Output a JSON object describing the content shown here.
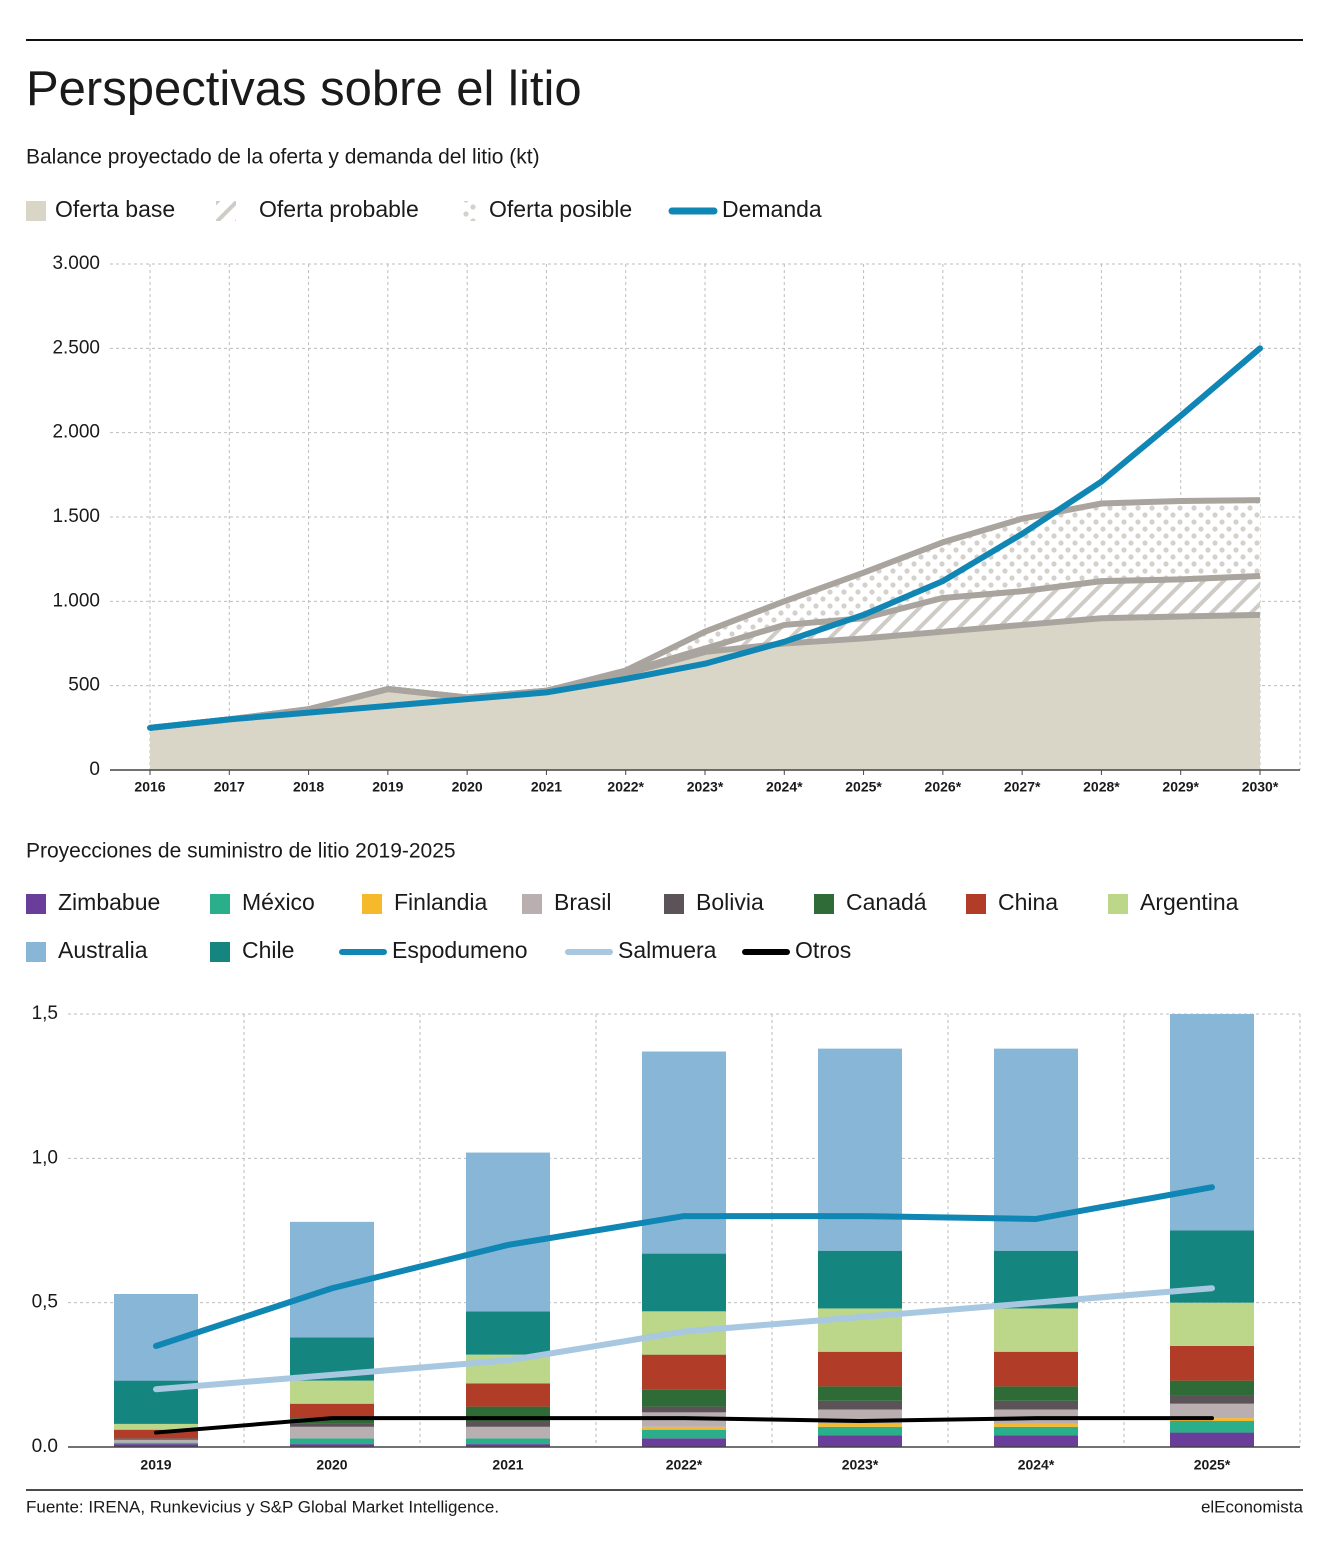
{
  "title": "Perspectivas sobre el litio",
  "source": "Fuente: IRENA, Runkevicius y S&P Global Market Intelligence.",
  "brand": "elEconomista",
  "chart_data": [
    {
      "type": "area",
      "title": "Balance proyectado de la oferta y demanda del litio (kt)",
      "categories": [
        "2016",
        "2017",
        "2018",
        "2019",
        "2020",
        "2021",
        "2022*",
        "2023*",
        "2024*",
        "2025*",
        "2026*",
        "2027*",
        "2028*",
        "2029*",
        "2030*"
      ],
      "edge_color": "#aaa49f",
      "series": [
        {
          "name": "Oferta base",
          "style": "fill",
          "color": "#d9d6c8",
          "values": [
            250,
            300,
            360,
            480,
            430,
            470,
            570,
            700,
            750,
            780,
            820,
            860,
            900,
            910,
            920
          ]
        },
        {
          "name": "Oferta probable",
          "style": "hatch",
          "color": "#c4c1bc",
          "values": [
            0,
            0,
            0,
            0,
            0,
            0,
            10,
            20,
            110,
            120,
            200,
            200,
            220,
            220,
            230
          ]
        },
        {
          "name": "Oferta posible",
          "style": "dots",
          "color": "#cfccc8",
          "values": [
            0,
            0,
            0,
            0,
            0,
            0,
            10,
            100,
            140,
            270,
            330,
            430,
            460,
            465,
            450
          ]
        },
        {
          "name": "Demanda",
          "style": "line",
          "color": "#0f86b4",
          "values": [
            250,
            300,
            340,
            380,
            420,
            460,
            540,
            630,
            760,
            920,
            1120,
            1400,
            1710,
            2100,
            2500
          ]
        }
      ],
      "ylim": [
        0,
        3000
      ],
      "yticks": [
        0,
        500,
        {
          "value": 1000,
          "label": "1.000"
        },
        {
          "value": 1500,
          "label": "1.500"
        },
        {
          "value": 2000,
          "label": "2.000"
        },
        {
          "value": 2500,
          "label": "2.500"
        },
        {
          "value": 3000,
          "label": "3.000"
        }
      ],
      "grid": true
    },
    {
      "type": "bar",
      "title": "Proyecciones de suministro de litio 2019-2025",
      "categories": [
        "2019",
        "2020",
        "2021",
        "2022*",
        "2023*",
        "2024*",
        "2025*"
      ],
      "series": [
        {
          "name": "Zimbabue",
          "style": "bar",
          "color": "#6a3d9a",
          "values": [
            0.01,
            0.01,
            0.01,
            0.03,
            0.04,
            0.04,
            0.05
          ]
        },
        {
          "name": "México",
          "style": "bar",
          "color": "#2bae8a",
          "values": [
            0.005,
            0.02,
            0.02,
            0.03,
            0.03,
            0.03,
            0.04
          ]
        },
        {
          "name": "Finlandia",
          "style": "bar",
          "color": "#f6b92b",
          "values": [
            0,
            0,
            0,
            0.01,
            0.01,
            0.01,
            0.01
          ]
        },
        {
          "name": "Brasil",
          "style": "bar",
          "color": "#b9aeb0",
          "values": [
            0.01,
            0.04,
            0.04,
            0.05,
            0.05,
            0.05,
            0.05
          ]
        },
        {
          "name": "Bolivia",
          "style": "bar",
          "color": "#5c5358",
          "values": [
            0.005,
            0.01,
            0.02,
            0.02,
            0.03,
            0.03,
            0.03
          ]
        },
        {
          "name": "Canadá",
          "style": "bar",
          "color": "#2e6b36",
          "values": [
            0,
            0.02,
            0.05,
            0.06,
            0.05,
            0.05,
            0.05
          ]
        },
        {
          "name": "China",
          "style": "bar",
          "color": "#b13c28",
          "values": [
            0.03,
            0.05,
            0.08,
            0.12,
            0.12,
            0.12,
            0.12
          ]
        },
        {
          "name": "Argentina",
          "style": "bar",
          "color": "#bcd68a",
          "values": [
            0.02,
            0.08,
            0.1,
            0.15,
            0.15,
            0.15,
            0.15
          ]
        },
        {
          "name": "Australia",
          "style": "bar",
          "color": "#87b6d6",
          "values": [
            0.3,
            0.4,
            0.55,
            0.7,
            0.7,
            0.7,
            0.75
          ]
        },
        {
          "name": "Chile",
          "style": "bar",
          "color": "#158580",
          "values": [
            0.15,
            0.15,
            0.15,
            0.2,
            0.2,
            0.2,
            0.25
          ]
        },
        {
          "name": "Espodumeno",
          "style": "line",
          "color": "#0f86b4",
          "values": [
            0.35,
            0.55,
            0.7,
            0.8,
            0.8,
            0.79,
            0.9
          ]
        },
        {
          "name": "Salmuera",
          "style": "line",
          "color": "#a7c8e0",
          "values": [
            0.2,
            0.25,
            0.3,
            0.4,
            0.45,
            0.5,
            0.55
          ]
        },
        {
          "name": "Otros",
          "style": "line",
          "color": "#000000",
          "values": [
            0.05,
            0.1,
            0.1,
            0.1,
            0.09,
            0.1,
            0.1
          ]
        }
      ],
      "ylim": [
        0,
        1.5
      ],
      "yticks": [
        {
          "value": 0,
          "label": "0.0"
        },
        {
          "value": 0.5,
          "label": "0,5"
        },
        {
          "value": 1.0,
          "label": "1,0"
        },
        {
          "value": 1.5,
          "label": "1,5"
        }
      ],
      "grid": true
    }
  ]
}
